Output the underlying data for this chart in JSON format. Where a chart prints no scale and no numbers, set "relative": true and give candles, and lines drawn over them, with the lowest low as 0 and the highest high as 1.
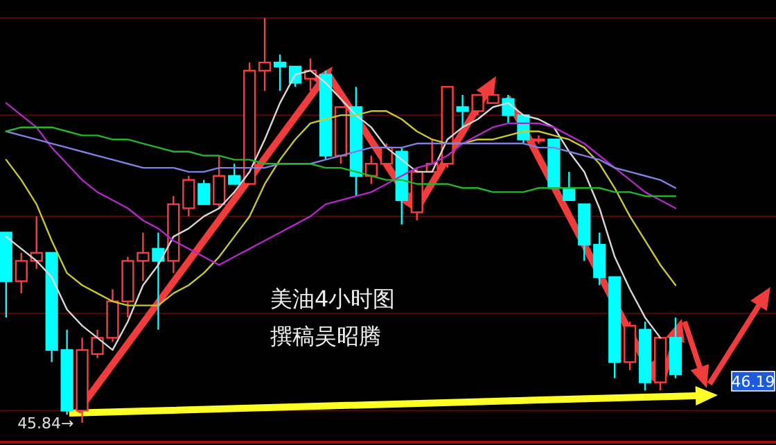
{
  "chart_data": {
    "type": "candlestick",
    "relative": true,
    "ref_lines": [
      {
        "axis": "y",
        "value": 1,
        "color": "#5a0a0a"
      },
      {
        "axis": "y",
        "value": 0.76,
        "color": "#5a0a0a"
      },
      {
        "axis": "y",
        "value": 0.51,
        "color": "#5a0a0a"
      },
      {
        "axis": "y",
        "value": 0.27,
        "color": "#5a0a0a"
      },
      {
        "axis": "y",
        "value": 0.03,
        "color": "#5a0a0a"
      }
    ],
    "title": "美油4小时图",
    "subtitle": "撰稿吴昭腾",
    "annotations": [
      "45.84→",
      "46.19"
    ],
    "categories": [
      null,
      null,
      null,
      null,
      null,
      null,
      null,
      null,
      null,
      null,
      null,
      null,
      null,
      null,
      null,
      null,
      null,
      null,
      null,
      null,
      null,
      null,
      null,
      null,
      null,
      null,
      null,
      null,
      null,
      null,
      null,
      null,
      null,
      null,
      null,
      null,
      null,
      null,
      null,
      null,
      null,
      null,
      null,
      null,
      null
    ],
    "ohlc": [
      [
        0.47,
        0.47,
        0.26,
        0.35
      ],
      [
        0.35,
        0.42,
        0.32,
        0.4
      ],
      [
        0.4,
        0.51,
        0.38,
        0.42
      ],
      [
        0.42,
        0.42,
        0.15,
        0.18
      ],
      [
        0.18,
        0.23,
        0.02,
        0.03
      ],
      [
        0.03,
        0.21,
        0,
        0.18
      ],
      [
        0.17,
        0.23,
        0.16,
        0.21
      ],
      [
        0.21,
        0.33,
        0.2,
        0.3
      ],
      [
        0.3,
        0.41,
        0.26,
        0.4
      ],
      [
        0.4,
        0.47,
        0.35,
        0.42
      ],
      [
        0.43,
        0.47,
        0.23,
        0.4
      ],
      [
        0.4,
        0.56,
        0.37,
        0.54
      ],
      [
        0.53,
        0.61,
        0.51,
        0.6
      ],
      [
        0.59,
        0.6,
        0.54,
        0.54
      ],
      [
        0.54,
        0.66,
        0.53,
        0.61
      ],
      [
        0.61,
        0.64,
        0.59,
        0.59
      ],
      [
        0.59,
        0.89,
        0.59,
        0.87
      ],
      [
        0.87,
        1,
        0.82,
        0.89
      ],
      [
        0.89,
        0.91,
        0.82,
        0.88
      ],
      [
        0.88,
        0.88,
        0.83,
        0.84
      ],
      [
        0.85,
        0.9,
        0.82,
        0.87
      ],
      [
        0.86,
        0.87,
        0.65,
        0.66
      ],
      [
        0.66,
        0.78,
        0.64,
        0.78
      ],
      [
        0.78,
        0.83,
        0.56,
        0.61
      ],
      [
        0.61,
        0.66,
        0.59,
        0.64
      ],
      [
        0.64,
        0.69,
        0.63,
        0.68
      ],
      [
        0.67,
        0.68,
        0.49,
        0.55
      ],
      [
        0.52,
        0.63,
        0.5,
        0.62
      ],
      [
        0.62,
        0.7,
        0.62,
        0.64
      ],
      [
        0.64,
        0.83,
        0.63,
        0.83
      ],
      [
        0.78,
        0.81,
        0.73,
        0.77
      ],
      [
        0.77,
        0.81,
        0.76,
        0.81
      ],
      [
        0.79,
        0.85,
        0.79,
        0.81
      ],
      [
        0.8,
        0.81,
        0.74,
        0.76
      ],
      [
        0.76,
        0.76,
        0.69,
        0.7
      ],
      [
        0.7,
        0.71,
        0.69,
        0.7
      ],
      [
        0.7,
        0.7,
        0.58,
        0.58
      ],
      [
        0.58,
        0.62,
        0.55,
        0.55
      ],
      [
        0.54,
        0.54,
        0.4,
        0.44
      ],
      [
        0.44,
        0.47,
        0.34,
        0.36
      ],
      [
        0.36,
        0.36,
        0.11,
        0.15
      ],
      [
        0.15,
        0.25,
        0.13,
        0.24
      ],
      [
        0.23,
        0.25,
        0.08,
        0.1
      ],
      [
        0.1,
        0.21,
        0.08,
        0.21
      ],
      [
        0.21,
        0.26,
        0.11,
        0.12
      ]
    ],
    "series": [
      {
        "type": "line",
        "color": "#d8d8d8",
        "values": [
          0.46,
          0.43,
          0.4,
          0.36,
          0.28,
          0.24,
          0.21,
          0.18,
          0.25,
          0.34,
          0.39,
          0.46,
          0.48,
          0.51,
          0.53,
          0.57,
          0.62,
          0.7,
          0.79,
          0.86,
          0.87,
          0.84,
          0.8,
          0.76,
          0.73,
          0.68,
          0.65,
          0.62,
          0.62,
          0.7,
          0.73,
          0.75,
          0.78,
          0.79,
          0.76,
          0.75,
          0.73,
          0.67,
          0.62,
          0.53,
          0.41,
          0.33,
          0.26,
          0.21,
          null
        ]
      },
      {
        "type": "line",
        "color": "#c8c832",
        "values": [
          0.65,
          0.6,
          0.54,
          0.45,
          0.37,
          0.34,
          0.32,
          0.3,
          0.29,
          0.29,
          0.29,
          0.32,
          0.34,
          0.37,
          0.41,
          0.46,
          0.51,
          0.59,
          0.65,
          0.7,
          0.74,
          0.75,
          0.76,
          0.76,
          0.77,
          0.77,
          0.75,
          0.72,
          0.7,
          0.69,
          0.69,
          0.7,
          0.7,
          0.71,
          0.72,
          0.72,
          0.71,
          0.7,
          0.68,
          0.64,
          0.58,
          0.51,
          0.45,
          0.39,
          0.34
        ]
      },
      {
        "type": "line",
        "color": "#b428c8",
        "values": [
          0.79,
          0.76,
          0.73,
          0.68,
          0.64,
          0.6,
          0.57,
          0.55,
          0.53,
          0.5,
          0.48,
          0.45,
          0.43,
          0.41,
          0.39,
          0.41,
          0.43,
          0.45,
          0.47,
          0.49,
          0.51,
          0.54,
          0.55,
          0.56,
          0.57,
          0.59,
          0.61,
          0.63,
          0.64,
          0.66,
          0.69,
          0.71,
          0.73,
          0.74,
          0.74,
          0.74,
          0.73,
          0.71,
          0.69,
          0.66,
          0.63,
          0.6,
          0.57,
          0.55,
          0.53
        ]
      },
      {
        "type": "line",
        "color": "#8080e0",
        "values": [
          0.72,
          0.71,
          0.7,
          0.69,
          0.68,
          0.67,
          0.66,
          0.65,
          0.64,
          0.63,
          0.63,
          0.63,
          0.62,
          0.62,
          0.63,
          0.63,
          0.63,
          0.63,
          0.64,
          0.64,
          0.64,
          0.65,
          0.66,
          0.67,
          0.68,
          0.68,
          0.68,
          0.69,
          0.69,
          0.69,
          0.69,
          0.69,
          0.69,
          0.69,
          0.69,
          0.68,
          0.68,
          0.67,
          0.66,
          0.65,
          0.63,
          0.62,
          0.61,
          0.6,
          0.58
        ]
      },
      {
        "type": "line",
        "color": "#28b428",
        "values": [
          0.72,
          0.73,
          0.73,
          0.73,
          0.72,
          0.71,
          0.71,
          0.7,
          0.7,
          0.69,
          0.68,
          0.67,
          0.67,
          0.66,
          0.66,
          0.65,
          0.65,
          0.64,
          0.64,
          0.64,
          0.64,
          0.63,
          0.63,
          0.62,
          0.61,
          0.6,
          0.6,
          0.59,
          0.59,
          0.59,
          0.58,
          0.58,
          0.57,
          0.57,
          0.57,
          0.58,
          0.58,
          0.58,
          0.58,
          0.58,
          0.57,
          0.57,
          0.56,
          0.56,
          0.56
        ]
      }
    ]
  }
}
